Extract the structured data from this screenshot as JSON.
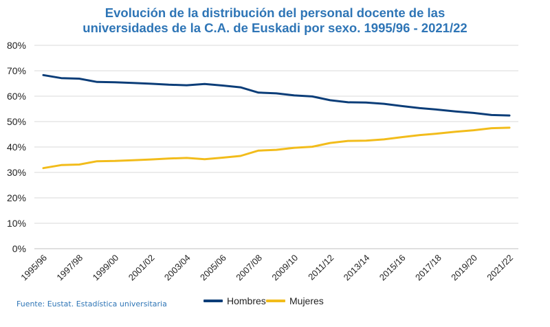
{
  "chart_data": {
    "type": "line",
    "title_line1": "Evolución de la distribución del personal docente de las",
    "title_line2": "universidades de la C.A. de Euskadi por sexo. 1995/96 - 2021/22",
    "x": [
      "1995/96",
      "1996/97",
      "1997/98",
      "1998/99",
      "1999/00",
      "2000/01",
      "2001/02",
      "2002/03",
      "2003/04",
      "2004/05",
      "2005/06",
      "2006/07",
      "2007/08",
      "2008/09",
      "2009/10",
      "2010/11",
      "2011/12",
      "2012/13",
      "2013/14",
      "2014/15",
      "2015/16",
      "2016/17",
      "2017/18",
      "2018/19",
      "2019/20",
      "2020/21",
      "2021/22"
    ],
    "tick_labels": [
      "1995/96",
      "1997/98",
      "1999/00",
      "2001/02",
      "2003/04",
      "2005/06",
      "2007/08",
      "2009/10",
      "2011/12",
      "2013/14",
      "2015/16",
      "2017/18",
      "2019/20",
      "2021/22"
    ],
    "y_ticks": [
      "0%",
      "10%",
      "20%",
      "30%",
      "40%",
      "50%",
      "60%",
      "70%",
      "80%"
    ],
    "ylim": [
      0,
      80
    ],
    "series": [
      {
        "name": "Hombres",
        "color": "#0B3D78",
        "values": [
          68.3,
          67.1,
          66.9,
          65.6,
          65.5,
          65.2,
          64.9,
          64.5,
          64.3,
          64.8,
          64.2,
          63.5,
          61.4,
          61.1,
          60.3,
          59.9,
          58.4,
          57.6,
          57.5,
          57.0,
          56.1,
          55.3,
          54.7,
          54.0,
          53.4,
          52.6,
          52.4
        ]
      },
      {
        "name": "Mujeres",
        "color": "#F2BC1B",
        "values": [
          31.7,
          32.9,
          33.1,
          34.4,
          34.5,
          34.8,
          35.1,
          35.5,
          35.7,
          35.2,
          35.8,
          36.5,
          38.6,
          38.9,
          39.7,
          40.1,
          41.6,
          42.4,
          42.5,
          43.0,
          43.9,
          44.7,
          45.3,
          46.0,
          46.6,
          47.4,
          47.6
        ]
      }
    ],
    "legend_position": "bottom",
    "grid": true
  },
  "source": "Fuente: Eustat. Estadística universitaria"
}
